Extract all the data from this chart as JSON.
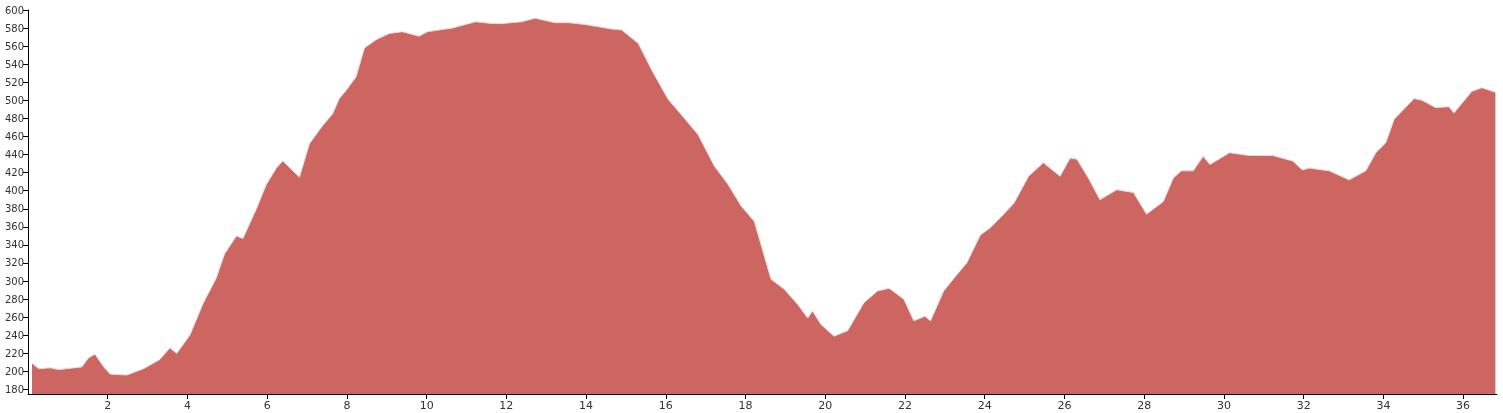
{
  "chart_data": {
    "type": "area",
    "color": "#cd6560",
    "marker": "none",
    "grid": false,
    "xlim": [
      0,
      36.85
    ],
    "xticks": [
      2,
      4,
      6,
      8,
      10,
      12,
      14,
      16,
      18,
      20,
      22,
      24,
      26,
      28,
      30,
      32,
      34,
      36
    ],
    "ylim": [
      175,
      600
    ],
    "yticks": [
      180,
      200,
      220,
      240,
      260,
      280,
      300,
      320,
      340,
      360,
      380,
      400,
      420,
      440,
      460,
      480,
      500,
      520,
      540,
      560,
      580,
      600
    ],
    "x": [
      0.1,
      0.27,
      0.56,
      0.77,
      1.35,
      1.52,
      1.68,
      1.9,
      2.06,
      2.48,
      2.9,
      3.3,
      3.56,
      3.73,
      4.06,
      4.39,
      4.72,
      4.93,
      5.23,
      5.39,
      5.73,
      5.98,
      6.23,
      6.39,
      6.81,
      7.06,
      7.39,
      7.64,
      7.81,
      7.98,
      8.23,
      8.44,
      8.73,
      9.06,
      9.39,
      9.81,
      10.02,
      10.64,
      11.23,
      11.64,
      11.89,
      12.39,
      12.72,
      13.22,
      13.56,
      13.97,
      14.64,
      14.89,
      15.31,
      15.64,
      16.06,
      16.39,
      16.81,
      17.22,
      17.56,
      17.89,
      18.22,
      18.39,
      18.64,
      18.97,
      19.31,
      19.56,
      19.68,
      19.89,
      20.22,
      20.56,
      20.97,
      21.31,
      21.6,
      21.97,
      22.22,
      22.5,
      22.64,
      22.97,
      23.3,
      23.55,
      23.89,
      24.14,
      24.39,
      24.73,
      25.1,
      25.47,
      25.89,
      26.14,
      26.31,
      26.6,
      26.89,
      27.31,
      27.73,
      28.06,
      28.48,
      28.73,
      28.93,
      29.23,
      29.48,
      29.65,
      30.14,
      30.64,
      31.22,
      31.72,
      31.97,
      32.14,
      32.64,
      33.14,
      33.56,
      33.81,
      34.06,
      34.27,
      34.77,
      34.97,
      35.31,
      35.64,
      35.77,
      36.22,
      36.47,
      36.81
    ],
    "values": [
      209,
      203,
      204,
      202,
      205,
      215,
      219,
      205,
      197,
      196,
      203,
      213,
      226,
      220,
      240,
      275,
      303,
      330,
      350,
      347,
      380,
      407,
      425,
      433,
      415,
      452,
      472,
      485,
      502,
      511,
      526,
      558,
      567,
      574,
      576,
      571,
      576,
      580,
      587,
      585,
      585,
      587,
      591,
      586,
      586,
      584,
      579,
      578,
      563,
      534,
      501,
      484,
      462,
      427,
      407,
      383,
      366,
      340,
      302,
      291,
      274,
      259,
      267,
      252,
      239,
      245,
      276,
      289,
      292,
      280,
      256,
      261,
      256,
      289,
      307,
      320,
      351,
      359,
      370,
      386,
      416,
      431,
      416,
      436,
      435,
      414,
      390,
      401,
      398,
      374,
      388,
      414,
      422,
      422,
      438,
      429,
      442,
      439,
      439,
      433,
      423,
      425,
      422,
      412,
      422,
      442,
      453,
      479,
      502,
      500,
      492,
      493,
      486,
      510,
      514,
      509
    ]
  }
}
